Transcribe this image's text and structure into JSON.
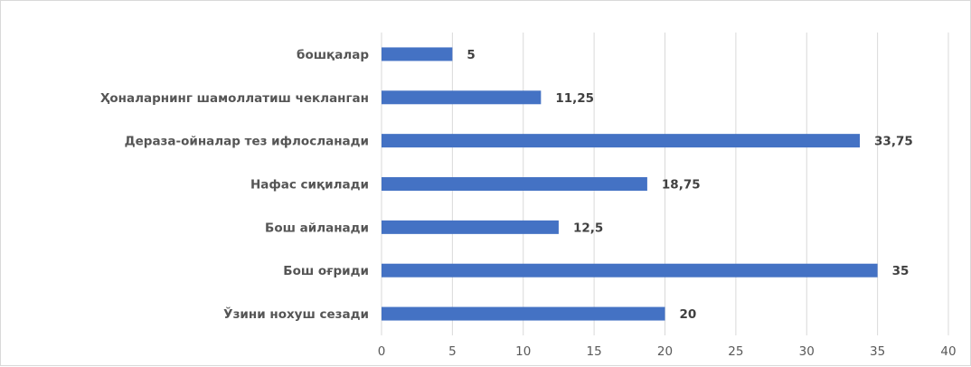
{
  "chart_data": {
    "type": "bar",
    "orientation": "horizontal",
    "categories": [
      "бошқалар",
      "Ҳоналарнинг шамоллатиш чекланган",
      "Дераза-ойналар тез ифлосланади",
      "Нафас сиқилади",
      "Бош айланади",
      "Бош оғриди",
      "Ўзини нохуш сезади"
    ],
    "values": [
      5,
      11.25,
      33.75,
      18.75,
      12.5,
      35,
      20
    ],
    "value_labels": [
      "5",
      "11,25",
      "33,75",
      "18,75",
      "12,5",
      "35",
      "20"
    ],
    "xlim": [
      0,
      40
    ],
    "xticks": [
      0,
      5,
      10,
      15,
      20,
      25,
      30,
      35,
      40
    ],
    "xtick_labels": [
      "0",
      "5",
      "10",
      "15",
      "20",
      "25",
      "30",
      "35",
      "40"
    ],
    "grid": "vertical",
    "legend": "none",
    "bar_color": "#4472C4",
    "grid_color": "#d9d9d9"
  }
}
